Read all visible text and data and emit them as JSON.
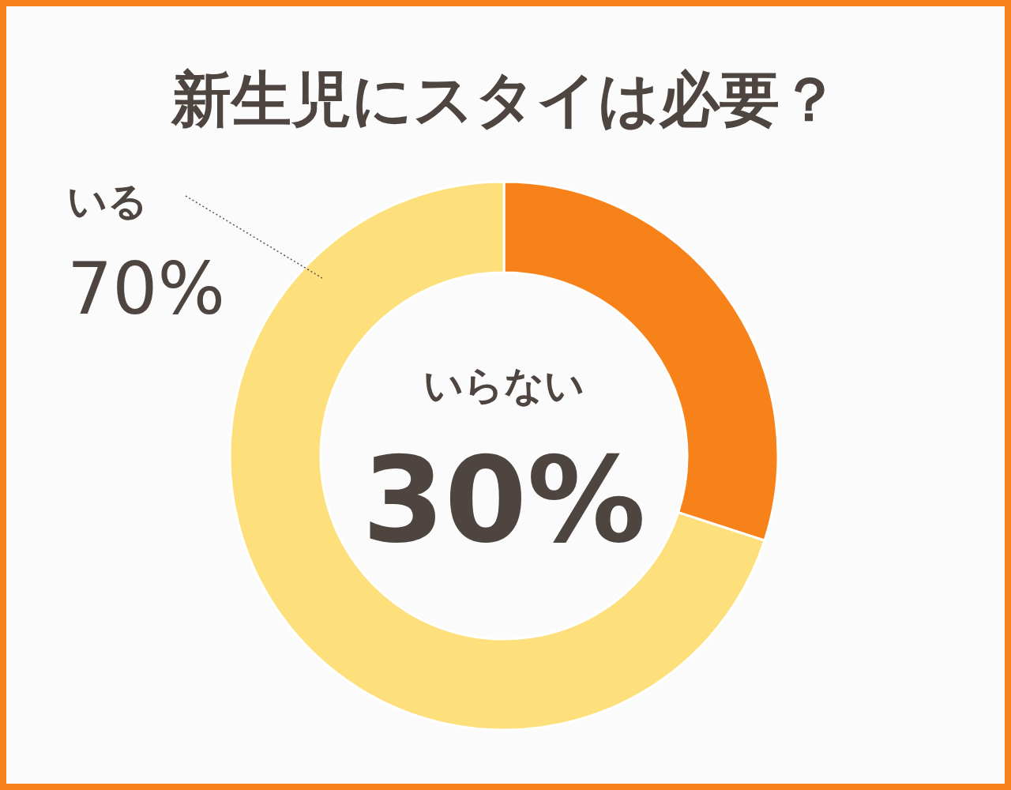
{
  "chart_data": {
    "type": "donut",
    "title": "新生児にスタイは必要？",
    "categories": [
      "いらない",
      "いる"
    ],
    "values": [
      30,
      70
    ],
    "colors": [
      "#f8821a",
      "#fde07c"
    ],
    "value_labels": [
      "30%",
      "70%"
    ]
  }
}
